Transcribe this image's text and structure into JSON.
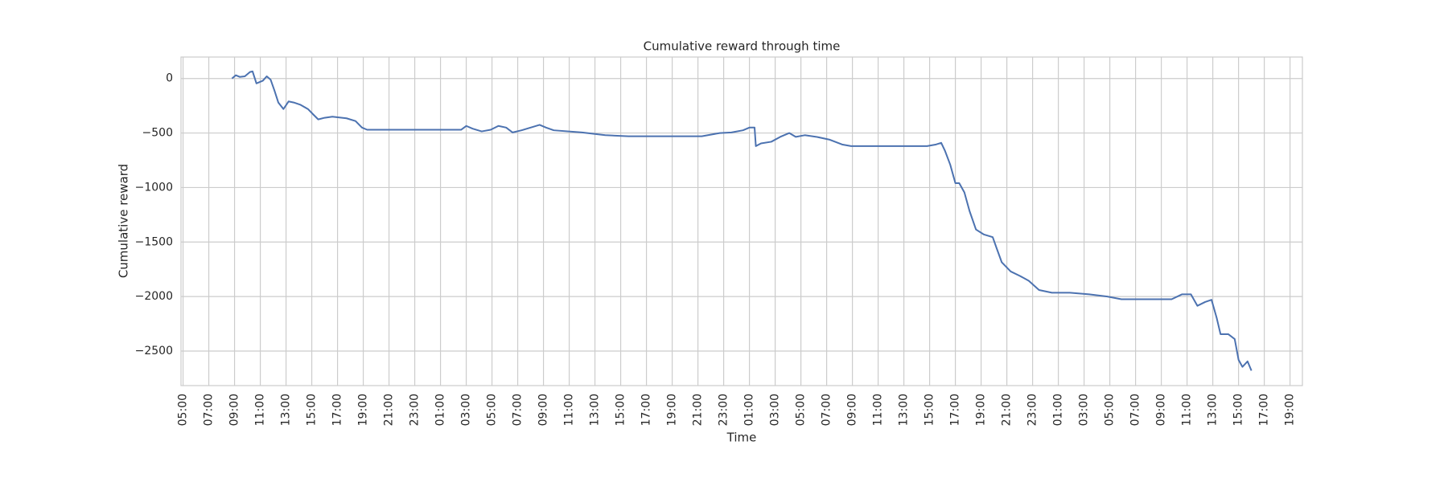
{
  "chart_data": {
    "type": "line",
    "title": "Cumulative reward through time",
    "xlabel": "Time",
    "ylabel": "Cumulative reward",
    "color": "#4c72b0",
    "grid": true,
    "xlim": [
      -0.16,
      86.96
    ],
    "ylim": [
      -2817,
      197
    ],
    "xticks": [
      {
        "value": 0,
        "label": "05:00"
      },
      {
        "value": 2,
        "label": "07:00"
      },
      {
        "value": 4,
        "label": "09:00"
      },
      {
        "value": 6,
        "label": "11:00"
      },
      {
        "value": 8,
        "label": "13:00"
      },
      {
        "value": 10,
        "label": "15:00"
      },
      {
        "value": 12,
        "label": "17:00"
      },
      {
        "value": 14,
        "label": "19:00"
      },
      {
        "value": 16,
        "label": "21:00"
      },
      {
        "value": 18,
        "label": "23:00"
      },
      {
        "value": 20,
        "label": "01:00"
      },
      {
        "value": 22,
        "label": "03:00"
      },
      {
        "value": 24,
        "label": "05:00"
      },
      {
        "value": 26,
        "label": "07:00"
      },
      {
        "value": 28,
        "label": "09:00"
      },
      {
        "value": 30,
        "label": "11:00"
      },
      {
        "value": 32,
        "label": "13:00"
      },
      {
        "value": 34,
        "label": "15:00"
      },
      {
        "value": 36,
        "label": "17:00"
      },
      {
        "value": 38,
        "label": "19:00"
      },
      {
        "value": 40,
        "label": "21:00"
      },
      {
        "value": 42,
        "label": "23:00"
      },
      {
        "value": 44,
        "label": "01:00"
      },
      {
        "value": 46,
        "label": "03:00"
      },
      {
        "value": 48,
        "label": "05:00"
      },
      {
        "value": 50,
        "label": "07:00"
      },
      {
        "value": 52,
        "label": "09:00"
      },
      {
        "value": 54,
        "label": "11:00"
      },
      {
        "value": 56,
        "label": "13:00"
      },
      {
        "value": 58,
        "label": "15:00"
      },
      {
        "value": 60,
        "label": "17:00"
      },
      {
        "value": 62,
        "label": "19:00"
      },
      {
        "value": 64,
        "label": "21:00"
      },
      {
        "value": 66,
        "label": "23:00"
      },
      {
        "value": 68,
        "label": "01:00"
      },
      {
        "value": 70,
        "label": "03:00"
      },
      {
        "value": 72,
        "label": "05:00"
      },
      {
        "value": 74,
        "label": "07:00"
      },
      {
        "value": 76,
        "label": "09:00"
      },
      {
        "value": 78,
        "label": "11:00"
      },
      {
        "value": 80,
        "label": "13:00"
      },
      {
        "value": 82,
        "label": "15:00"
      },
      {
        "value": 84,
        "label": "17:00"
      },
      {
        "value": 86,
        "label": "19:00"
      }
    ],
    "yticks": [
      0,
      {
        "value": -500,
        "label": "−500"
      },
      {
        "value": -1000,
        "label": "−1000"
      },
      {
        "value": -1500,
        "label": "−1500"
      },
      {
        "value": -2000,
        "label": "−2000"
      },
      {
        "value": -2500,
        "label": "−2500"
      }
    ],
    "x": [
      3.8,
      4.1,
      4.4,
      4.8,
      5.2,
      5.4,
      5.7,
      6.2,
      6.5,
      6.8,
      7.1,
      7.4,
      7.8,
      8.2,
      8.6,
      9.1,
      9.7,
      10.2,
      10.5,
      11.0,
      11.6,
      12.7,
      13.4,
      13.9,
      14.3,
      17.3,
      21.6,
      22.0,
      22.5,
      23.2,
      23.9,
      24.5,
      25.1,
      25.6,
      26.3,
      27.0,
      27.7,
      28.2,
      28.8,
      31.0,
      32.8,
      34.6,
      37.4,
      40.3,
      41.7,
      42.6,
      43.5,
      44.0,
      44.4,
      44.5,
      44.9,
      45.7,
      46.4,
      47.1,
      47.6,
      48.3,
      49.2,
      50.2,
      51.2,
      51.9,
      54.6,
      57.8,
      58.5,
      58.9,
      59.2,
      59.6,
      60.0,
      60.3,
      60.7,
      61.1,
      61.6,
      62.2,
      62.9,
      63.2,
      63.6,
      64.3,
      65.0,
      65.7,
      66.5,
      67.5,
      68.9,
      70.4,
      71.8,
      72.9,
      75.4,
      76.8,
      77.6,
      78.3,
      78.8,
      79.4,
      79.9,
      80.3,
      80.6,
      81.2,
      81.7,
      82.0,
      82.3,
      82.7,
      83.0
    ],
    "values": [
      0,
      30,
      15,
      20,
      60,
      65,
      -45,
      -20,
      20,
      -10,
      -110,
      -220,
      -280,
      -210,
      -220,
      -240,
      -280,
      -340,
      -375,
      -360,
      -350,
      -365,
      -390,
      -450,
      -470,
      -470,
      -470,
      -435,
      -460,
      -485,
      -470,
      -435,
      -450,
      -495,
      -475,
      -450,
      -425,
      -450,
      -475,
      -495,
      -520,
      -530,
      -530,
      -530,
      -500,
      -495,
      -475,
      -450,
      -450,
      -620,
      -595,
      -580,
      -535,
      -500,
      -535,
      -520,
      -535,
      -560,
      -605,
      -620,
      -620,
      -620,
      -605,
      -590,
      -665,
      -790,
      -960,
      -960,
      -1045,
      -1215,
      -1385,
      -1430,
      -1455,
      -1555,
      -1685,
      -1770,
      -1810,
      -1855,
      -1940,
      -1965,
      -1965,
      -1980,
      -2000,
      -2025,
      -2025,
      -2025,
      -1980,
      -1980,
      -2085,
      -2050,
      -2030,
      -2195,
      -2345,
      -2345,
      -2390,
      -2580,
      -2645,
      -2595,
      -2680
    ]
  }
}
